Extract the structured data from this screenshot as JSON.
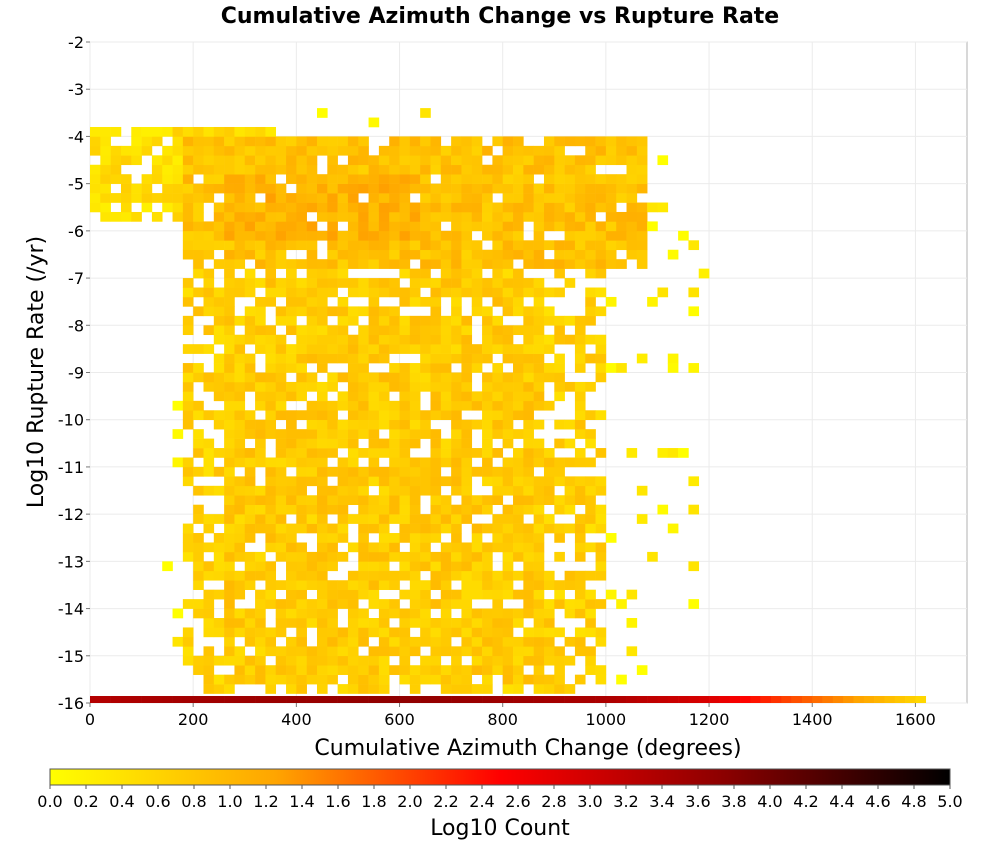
{
  "chart_data": {
    "type": "heatmap",
    "title": "Cumulative Azimuth Change vs Rupture Rate",
    "xlabel": "Cumulative Azimuth Change (degrees)",
    "ylabel": "Log10 Rupture Rate (/yr)",
    "xlim": [
      0,
      1700
    ],
    "ylim": [
      -16,
      -2
    ],
    "xticks": [
      0,
      200,
      400,
      600,
      800,
      1000,
      1200,
      1400,
      1600
    ],
    "yticks": [
      -2,
      -3,
      -4,
      -5,
      -6,
      -7,
      -8,
      -9,
      -10,
      -11,
      -12,
      -13,
      -14,
      -15,
      -16
    ],
    "bin_width_x": 20,
    "bin_height_y": 0.2,
    "grid": true,
    "colorbar": {
      "label": "Log10 Count",
      "range": [
        0,
        5
      ],
      "ticks": [
        "0.0",
        "0.2",
        "0.4",
        "0.6",
        "0.8",
        "1.0",
        "1.2",
        "1.4",
        "1.6",
        "1.8",
        "2.0",
        "2.2",
        "2.4",
        "2.6",
        "2.8",
        "3.0",
        "3.2",
        "3.4",
        "3.6",
        "3.8",
        "4.0",
        "4.2",
        "4.4",
        "4.6",
        "4.8",
        "5.0"
      ],
      "colors": [
        "#ffff00",
        "#ffa500",
        "#ff0000",
        "#8b0000",
        "#000000"
      ]
    },
    "bottom_row": {
      "y": -16,
      "x_start": 0,
      "x_end": 1620,
      "log10_count_profile": [
        [
          0,
          3.3
        ],
        [
          200,
          3.5
        ],
        [
          600,
          3.7
        ],
        [
          1000,
          3.4
        ],
        [
          1200,
          2.9
        ],
        [
          1350,
          2.0
        ],
        [
          1500,
          1.2
        ],
        [
          1620,
          0.5
        ]
      ]
    },
    "regions": [
      {
        "x_range": [
          0,
          380
        ],
        "y_range": [
          -5.8,
          -3.8
        ],
        "log10_count": 0.45,
        "density": 0.75
      },
      {
        "x_range": [
          180,
          1080
        ],
        "y_range": [
          -6.8,
          -4.0
        ],
        "log10_count": 0.85,
        "density": 0.9
      },
      {
        "x_range": [
          270,
          650
        ],
        "y_range": [
          -6.2,
          -4.8
        ],
        "log10_count": 1.05,
        "density": 0.95
      },
      {
        "x_range": [
          180,
          1000
        ],
        "y_range": [
          -15.8,
          -6.8
        ],
        "log10_count": 0.65,
        "density": 0.6
      },
      {
        "x_range": [
          270,
          880
        ],
        "y_range": [
          -15.6,
          -7.0
        ],
        "log10_count": 0.72,
        "density": 0.85
      },
      {
        "x_range": [
          140,
          1200
        ],
        "y_range": [
          -15.6,
          -3.4
        ],
        "log10_count": 0.15,
        "density": 0.06
      }
    ]
  }
}
